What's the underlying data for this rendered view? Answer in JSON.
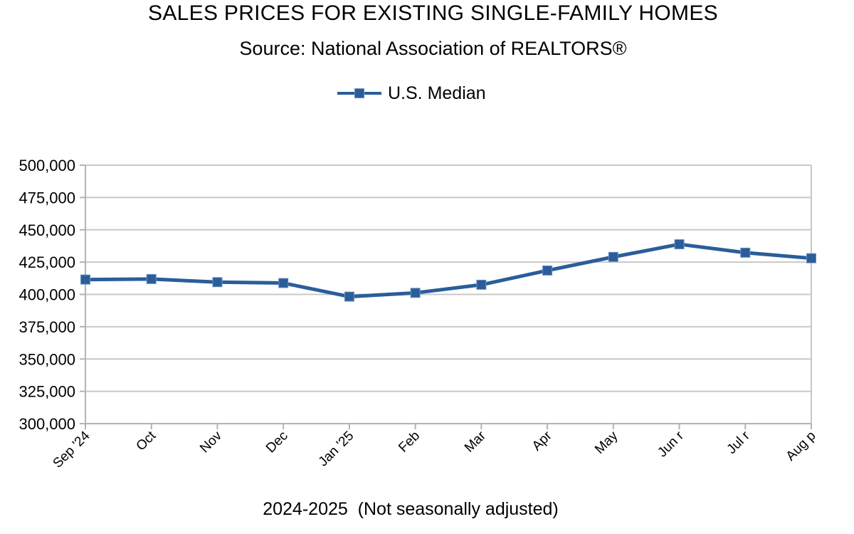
{
  "chart_data": {
    "type": "line",
    "title": "SALES PRICES FOR EXISTING SINGLE-FAMILY HOMES",
    "subtitle": "Source: National Association of REALTORS®",
    "xlabel": "2024-2025  (Not seasonally adjusted)",
    "ylabel": "",
    "categories": [
      "Sep '24",
      "Oct",
      "Nov",
      "Dec",
      "Jan '25",
      "Feb",
      "Mar",
      "Apr",
      "May",
      "Jun r",
      "Jul r",
      "Aug p"
    ],
    "series": [
      {
        "name": "U.S. Median",
        "color": "#2a5d9a",
        "marker": "square",
        "values": [
          411500,
          411900,
          409500,
          408800,
          398300,
          401200,
          407500,
          418500,
          429000,
          438800,
          432300,
          428000
        ]
      }
    ],
    "ylim": [
      300000,
      500000
    ],
    "yticks": [
      500000,
      475000,
      450000,
      425000,
      400000,
      375000,
      350000,
      325000,
      300000
    ],
    "ytick_labels": [
      "500,000",
      "475,000",
      "450,000",
      "425,000",
      "400,000",
      "375,000",
      "350,000",
      "325,000",
      "300,000"
    ],
    "grid": true,
    "legend_position": "top-center"
  }
}
